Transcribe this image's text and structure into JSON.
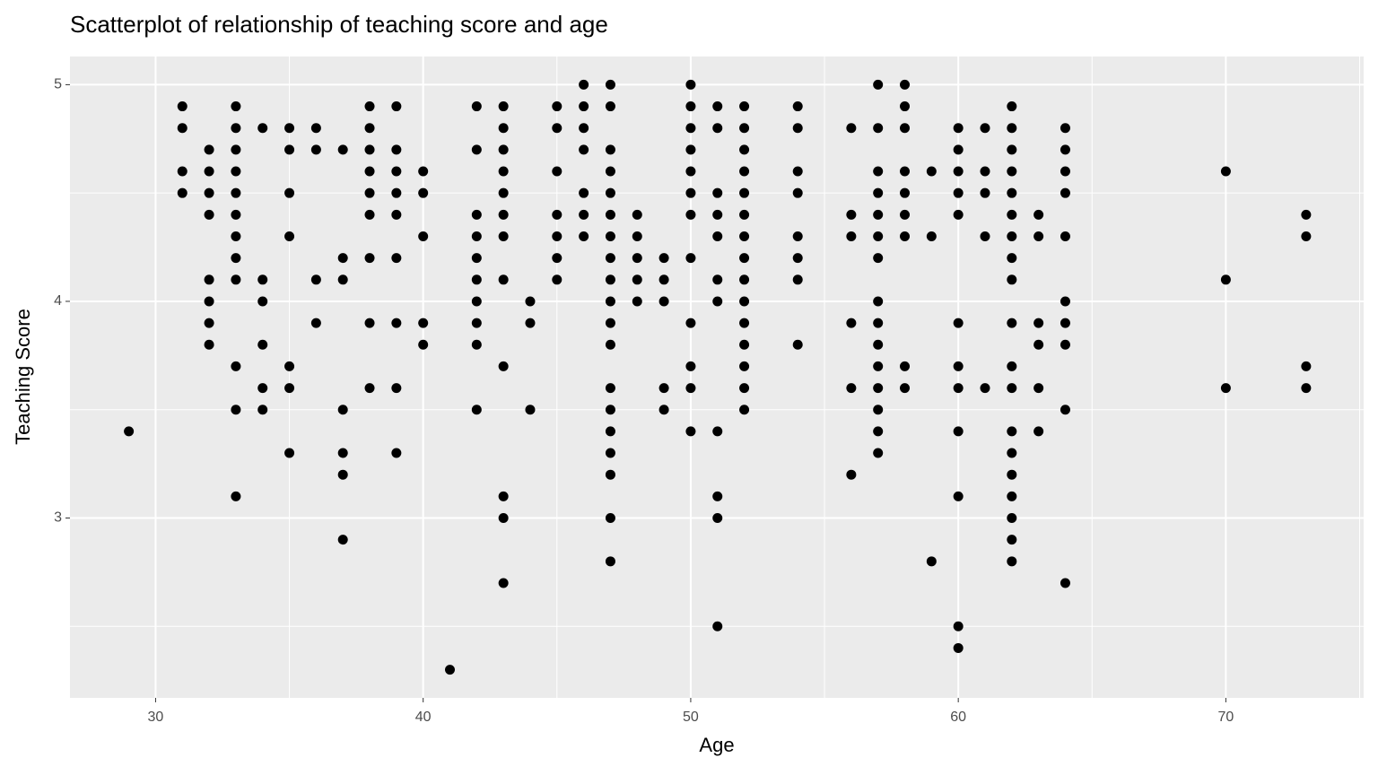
{
  "chart_data": {
    "type": "scatter",
    "title": "Scatterplot of relationship of teaching score and age",
    "x_label": "Age",
    "y_label": "Teaching Score",
    "xlim": [
      26.8,
      75.15
    ],
    "ylim": [
      2.17,
      5.13
    ],
    "xticks": [
      30,
      40,
      50,
      60,
      70
    ],
    "yticks": [
      3,
      4,
      5
    ],
    "xminor": [
      35,
      45,
      55,
      65,
      75
    ],
    "yminor": [
      2.5,
      3.5,
      4.5
    ],
    "grid": true,
    "color": "#000000",
    "x": [
      29,
      31,
      31,
      31,
      31,
      32,
      32,
      32,
      32,
      32,
      32,
      32,
      32,
      33,
      33,
      33,
      33,
      33,
      33,
      33,
      33,
      33,
      33,
      33,
      33,
      34,
      34,
      34,
      34,
      34,
      34,
      35,
      35,
      35,
      35,
      35,
      35,
      35,
      36,
      36,
      36,
      36,
      37,
      37,
      37,
      37,
      37,
      37,
      37,
      38,
      38,
      38,
      38,
      38,
      38,
      38,
      38,
      38,
      39,
      39,
      39,
      39,
      39,
      39,
      39,
      39,
      39,
      40,
      40,
      40,
      40,
      40,
      41,
      42,
      42,
      42,
      42,
      42,
      42,
      42,
      42,
      42,
      42,
      43,
      43,
      43,
      43,
      43,
      43,
      43,
      43,
      43,
      43,
      43,
      43,
      44,
      44,
      44,
      45,
      45,
      45,
      45,
      45,
      45,
      45,
      46,
      46,
      46,
      46,
      46,
      46,
      46,
      47,
      47,
      47,
      47,
      47,
      47,
      47,
      47,
      47,
      47,
      47,
      47,
      47,
      47,
      47,
      47,
      47,
      47,
      47,
      48,
      48,
      48,
      48,
      48,
      49,
      49,
      49,
      49,
      49,
      50,
      50,
      50,
      50,
      50,
      50,
      50,
      50,
      50,
      50,
      50,
      50,
      51,
      51,
      51,
      51,
      51,
      51,
      51,
      51,
      51,
      51,
      51,
      52,
      52,
      52,
      52,
      52,
      52,
      52,
      52,
      52,
      52,
      52,
      52,
      52,
      52,
      52,
      54,
      54,
      54,
      54,
      54,
      54,
      54,
      54,
      56,
      56,
      56,
      56,
      56,
      56,
      57,
      57,
      57,
      57,
      57,
      57,
      57,
      57,
      57,
      57,
      57,
      57,
      57,
      57,
      57,
      58,
      58,
      58,
      58,
      58,
      58,
      58,
      58,
      58,
      59,
      59,
      59,
      60,
      60,
      60,
      60,
      60,
      60,
      60,
      60,
      60,
      60,
      60,
      60,
      61,
      61,
      61,
      61,
      61,
      62,
      62,
      62,
      62,
      62,
      62,
      62,
      62,
      62,
      62,
      62,
      62,
      62,
      62,
      62,
      62,
      62,
      62,
      62,
      63,
      63,
      63,
      63,
      63,
      63,
      64,
      64,
      64,
      64,
      64,
      64,
      64,
      64,
      64,
      64,
      70,
      70,
      70,
      73,
      73,
      73,
      73
    ],
    "values": [
      3.4,
      4.9,
      4.8,
      4.6,
      4.5,
      4.7,
      4.6,
      4.5,
      4.4,
      4.1,
      4.0,
      3.9,
      3.8,
      4.9,
      4.8,
      4.7,
      4.6,
      4.5,
      4.4,
      4.3,
      4.2,
      4.1,
      3.7,
      3.5,
      3.1,
      4.8,
      4.1,
      4.0,
      3.8,
      3.6,
      3.5,
      4.8,
      4.7,
      4.5,
      4.3,
      3.7,
      3.6,
      3.3,
      4.8,
      4.7,
      4.1,
      3.9,
      4.7,
      4.2,
      4.1,
      3.5,
      3.3,
      3.2,
      2.9,
      4.9,
      4.8,
      4.7,
      4.6,
      4.5,
      4.4,
      4.2,
      3.9,
      3.6,
      4.9,
      4.7,
      4.6,
      4.5,
      4.4,
      4.2,
      3.9,
      3.6,
      3.3,
      4.6,
      4.5,
      4.3,
      3.9,
      3.8,
      2.3,
      4.9,
      4.7,
      4.4,
      4.3,
      4.2,
      4.1,
      4.0,
      3.9,
      3.8,
      3.5,
      4.9,
      4.8,
      4.7,
      4.6,
      4.5,
      4.4,
      4.3,
      4.1,
      3.7,
      3.1,
      3.0,
      2.7,
      4.0,
      3.9,
      3.5,
      4.9,
      4.8,
      4.6,
      4.4,
      4.3,
      4.2,
      4.1,
      5.0,
      4.9,
      4.8,
      4.7,
      4.5,
      4.4,
      4.3,
      5.0,
      4.9,
      4.7,
      4.6,
      4.5,
      4.4,
      4.3,
      4.2,
      4.1,
      4.0,
      3.9,
      3.8,
      3.6,
      3.5,
      3.4,
      3.3,
      3.2,
      3.0,
      2.8,
      4.4,
      4.3,
      4.2,
      4.1,
      4.0,
      4.2,
      4.1,
      4.0,
      3.6,
      3.5,
      5.0,
      4.9,
      4.8,
      4.7,
      4.6,
      4.5,
      4.4,
      4.2,
      3.9,
      3.7,
      3.6,
      3.4,
      4.9,
      4.8,
      4.5,
      4.4,
      4.3,
      4.1,
      4.0,
      3.4,
      3.1,
      3.0,
      2.5,
      4.9,
      4.8,
      4.7,
      4.6,
      4.5,
      4.4,
      4.3,
      4.2,
      4.1,
      4.0,
      3.9,
      3.8,
      3.7,
      3.6,
      3.5,
      4.9,
      4.8,
      4.6,
      4.5,
      4.3,
      4.2,
      4.1,
      3.8,
      4.8,
      4.4,
      4.3,
      3.9,
      3.6,
      3.2,
      5.0,
      4.8,
      4.6,
      4.5,
      4.4,
      4.3,
      4.2,
      4.0,
      3.9,
      3.8,
      3.7,
      3.6,
      3.5,
      3.4,
      3.3,
      5.0,
      4.9,
      4.8,
      4.6,
      4.5,
      4.4,
      4.3,
      3.7,
      3.6,
      4.6,
      4.3,
      2.8,
      4.8,
      4.7,
      4.6,
      4.5,
      4.4,
      3.9,
      3.7,
      3.6,
      3.4,
      3.1,
      2.5,
      2.4,
      4.8,
      4.6,
      4.5,
      4.3,
      3.6,
      4.9,
      4.8,
      4.7,
      4.6,
      4.5,
      4.4,
      4.3,
      4.2,
      4.1,
      3.9,
      3.7,
      3.6,
      3.4,
      3.3,
      3.2,
      3.1,
      3.0,
      2.9,
      2.8,
      4.4,
      4.3,
      3.9,
      3.8,
      3.6,
      3.4,
      4.8,
      4.7,
      4.6,
      4.5,
      4.3,
      4.0,
      3.9,
      3.8,
      3.5,
      2.7,
      4.6,
      4.1,
      3.6,
      4.4,
      4.3,
      3.7,
      3.6
    ]
  }
}
